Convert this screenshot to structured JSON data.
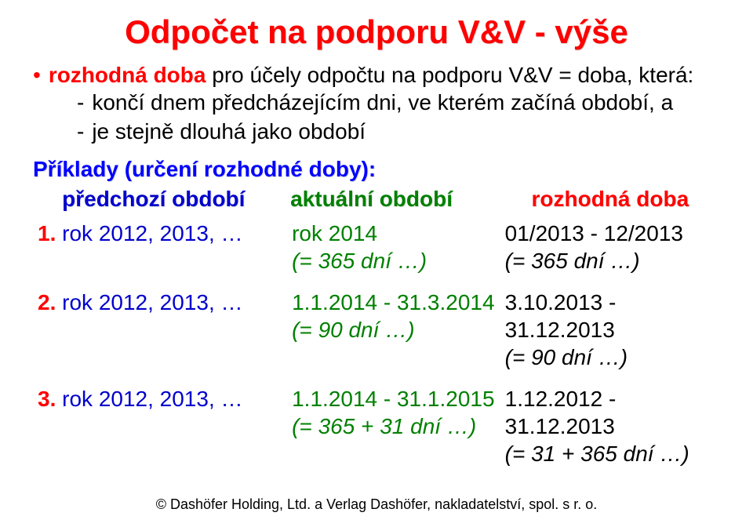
{
  "title": "Odpočet na podporu V&V - výše",
  "bullet": {
    "lead_red": "rozhodná doba",
    "rest": " pro účely odpočtu na podporu V&V = doba, která:"
  },
  "subitems": [
    "končí dnem předcházejícím dni, ve kterém začíná období, a",
    "je stejně dlouhá jako období"
  ],
  "examples_label": "Příklady (určení rozhodné doby):",
  "table": {
    "headers": {
      "prev": "předchozí období",
      "cur": "aktuální období",
      "dec": "rozhodná doba"
    },
    "rows": [
      {
        "idx": "1.",
        "prev": "rok 2012, 2013, …",
        "cur_line1": "rok 2014",
        "cur_line2": "(= 365 dní …)",
        "dec_line1": "01/2013 - 12/2013",
        "dec_line2": "(= 365 dní …)"
      },
      {
        "idx": "2.",
        "prev": "rok 2012, 2013, …",
        "cur_line1": "1.1.2014 - 31.3.2014",
        "cur_line2": "(= 90 dní …)",
        "dec_line1": "3.10.2013 - 31.12.2013",
        "dec_line2": "(= 90 dní …)"
      },
      {
        "idx": "3.",
        "prev": "rok 2012, 2013, …",
        "cur_line1": "1.1.2014 - 31.1.2015",
        "cur_line2": "(= 365 + 31 dní …)",
        "dec_line1": "1.12.2012 - 31.12.2013",
        "dec_line2": "(= 31 + 365 dní …)"
      }
    ]
  },
  "footer": "© Dashöfer Holding, Ltd. a Verlag Dashöfer, nakladatelství, spol. s r. o."
}
